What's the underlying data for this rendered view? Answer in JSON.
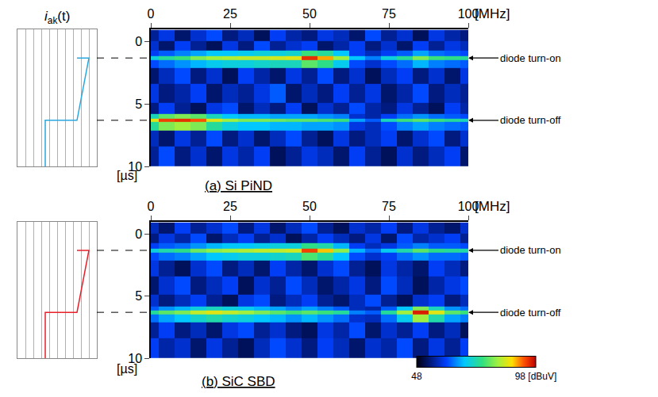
{
  "chart_data": [
    {
      "type": "heatmap",
      "title": "(a) Si PiND",
      "x_label": "[MHz]",
      "y_label": "[µs]",
      "xlim": [
        0,
        100
      ],
      "xticks": [
        0,
        25,
        50,
        75,
        100
      ],
      "ylim": [
        -1,
        10
      ],
      "yticks": [
        0,
        5,
        10
      ],
      "x": [
        0,
        5,
        10,
        15,
        20,
        25,
        30,
        35,
        40,
        45,
        50,
        55,
        60,
        65,
        70,
        75,
        80,
        85,
        90,
        95,
        100
      ],
      "y": [
        -0.5,
        0.4,
        1.0,
        1.3,
        1.6,
        2.6,
        4.2,
        5.6,
        6.0,
        6.3,
        6.6,
        7.6,
        9.2
      ],
      "cells": [
        [
          55,
          59,
          53,
          58,
          61,
          54,
          57,
          52,
          60,
          56,
          54,
          59,
          57,
          53,
          61,
          55,
          58,
          52,
          59,
          56,
          54
        ],
        [
          58,
          53,
          60,
          55,
          52,
          59,
          54,
          61,
          55,
          58,
          60,
          53,
          56,
          60,
          54,
          58,
          53,
          60,
          55,
          59,
          57
        ],
        [
          60,
          62,
          64,
          66,
          68,
          68,
          69,
          70,
          70,
          71,
          76,
          74,
          68,
          60,
          57,
          60,
          62,
          66,
          63,
          62,
          61
        ],
        [
          70,
          74,
          76,
          80,
          82,
          83,
          84,
          84,
          85,
          86,
          95,
          90,
          82,
          68,
          64,
          70,
          74,
          80,
          76,
          75,
          74
        ],
        [
          61,
          63,
          65,
          67,
          69,
          70,
          70,
          71,
          72,
          72,
          78,
          75,
          69,
          61,
          58,
          61,
          63,
          67,
          64,
          63,
          62
        ],
        [
          53,
          57,
          61,
          54,
          58,
          52,
          60,
          56,
          53,
          59,
          55,
          61,
          54,
          58,
          52,
          57,
          60,
          54,
          58,
          53,
          59
        ],
        [
          59,
          54,
          56,
          60,
          53,
          57,
          55,
          59,
          62,
          53,
          57,
          54,
          60,
          55,
          59,
          53,
          56,
          61,
          54,
          57,
          55
        ],
        [
          54,
          60,
          55,
          52,
          59,
          61,
          53,
          57,
          54,
          60,
          52,
          58,
          55,
          61,
          56,
          54,
          59,
          55,
          52,
          60,
          56
        ],
        [
          72,
          78,
          80,
          78,
          72,
          68,
          67,
          67,
          66,
          66,
          66,
          65,
          64,
          58,
          56,
          60,
          63,
          65,
          63,
          62,
          61
        ],
        [
          86,
          94,
          95,
          93,
          86,
          82,
          80,
          80,
          79,
          78,
          78,
          77,
          76,
          66,
          62,
          72,
          76,
          78,
          76,
          74,
          72
        ],
        [
          74,
          80,
          82,
          80,
          74,
          70,
          68,
          68,
          67,
          67,
          66,
          66,
          65,
          59,
          57,
          61,
          64,
          66,
          64,
          63,
          62
        ],
        [
          57,
          53,
          59,
          55,
          61,
          54,
          58,
          53,
          57,
          61,
          55,
          52,
          59,
          54,
          57,
          60,
          53,
          58,
          61,
          54,
          58
        ],
        [
          55,
          61,
          54,
          58,
          53,
          59,
          56,
          60,
          52,
          55,
          59,
          57,
          53,
          60,
          55,
          52,
          58,
          54,
          57,
          60,
          53
        ]
      ],
      "annotations": [
        {
          "text": "diode turn-on",
          "y": 1.3
        },
        {
          "text": "diode turn-off",
          "y": 6.3
        }
      ],
      "inset": {
        "type": "line",
        "title": {
          "symbol": "i",
          "subscript": "ak",
          "argument": "(t)"
        },
        "color": "#29a8e0",
        "x": [
          7.5,
          9,
          7.5,
          3.5,
          3.5
        ],
        "y": [
          1.3,
          1.3,
          6.3,
          6.3,
          10
        ],
        "xlim": [
          0,
          10
        ],
        "xticks": [
          0,
          1,
          2,
          3,
          4,
          5,
          6,
          7,
          8,
          9,
          10
        ],
        "ylim": [
          -1,
          10
        ],
        "tick_labels": false,
        "grid": true
      }
    },
    {
      "type": "heatmap",
      "title": "(b) SiC SBD",
      "x_label": "[MHz]",
      "y_label": "[µs]",
      "xlim": [
        0,
        100
      ],
      "xticks": [
        0,
        25,
        50,
        75,
        100
      ],
      "ylim": [
        -1,
        10
      ],
      "yticks": [
        0,
        5,
        10
      ],
      "x": [
        0,
        5,
        10,
        15,
        20,
        25,
        30,
        35,
        40,
        45,
        50,
        55,
        60,
        65,
        70,
        75,
        80,
        85,
        90,
        95,
        100
      ],
      "y": [
        -0.5,
        0.4,
        1.0,
        1.3,
        1.6,
        2.6,
        4.2,
        5.6,
        6.0,
        6.3,
        6.6,
        7.6,
        9.2
      ],
      "cells": [
        [
          57,
          53,
          60,
          55,
          58,
          61,
          54,
          59,
          53,
          57,
          61,
          55,
          52,
          58,
          56,
          60,
          54,
          59,
          55,
          53,
          58
        ],
        [
          54,
          59,
          56,
          61,
          53,
          57,
          60,
          55,
          58,
          52,
          56,
          60,
          57,
          54,
          59,
          53,
          61,
          56,
          58,
          60,
          55
        ],
        [
          60,
          62,
          63,
          65,
          67,
          68,
          68,
          69,
          70,
          70,
          75,
          73,
          67,
          60,
          57,
          59,
          62,
          64,
          62,
          62,
          61
        ],
        [
          70,
          73,
          75,
          79,
          81,
          82,
          83,
          84,
          84,
          85,
          94,
          89,
          81,
          67,
          63,
          69,
          73,
          78,
          75,
          74,
          73
        ],
        [
          61,
          63,
          64,
          66,
          68,
          69,
          70,
          70,
          71,
          72,
          77,
          74,
          68,
          61,
          58,
          60,
          63,
          65,
          63,
          63,
          62
        ],
        [
          59,
          55,
          52,
          58,
          61,
          54,
          57,
          53,
          60,
          56,
          53,
          58,
          61,
          55,
          52,
          59,
          56,
          53,
          60,
          57,
          54
        ],
        [
          53,
          58,
          61,
          54,
          57,
          60,
          52,
          58,
          55,
          61,
          57,
          53,
          56,
          59,
          54,
          61,
          57,
          52,
          56,
          59,
          61
        ],
        [
          58,
          54,
          57,
          60,
          55,
          52,
          59,
          61,
          54,
          57,
          60,
          55,
          53,
          57,
          61,
          55,
          52,
          58,
          60,
          54,
          57
        ],
        [
          62,
          65,
          67,
          70,
          72,
          70,
          69,
          67,
          66,
          64,
          66,
          64,
          62,
          57,
          56,
          62,
          68,
          80,
          72,
          65,
          63
        ],
        [
          74,
          78,
          80,
          84,
          86,
          84,
          82,
          80,
          78,
          76,
          78,
          76,
          74,
          64,
          62,
          74,
          82,
          96,
          86,
          78,
          76
        ],
        [
          63,
          66,
          68,
          71,
          73,
          71,
          70,
          68,
          67,
          65,
          67,
          65,
          63,
          58,
          57,
          63,
          69,
          82,
          73,
          66,
          64
        ],
        [
          55,
          60,
          54,
          57,
          53,
          59,
          61,
          55,
          58,
          54,
          52,
          59,
          56,
          61,
          53,
          58,
          55,
          60,
          54,
          57,
          52
        ],
        [
          60,
          56,
          58,
          53,
          59,
          55,
          52,
          57,
          61,
          58,
          54,
          60,
          57,
          53,
          58,
          56,
          61,
          54,
          59,
          55,
          60
        ]
      ],
      "annotations": [
        {
          "text": "diode turn-on",
          "y": 1.3
        },
        {
          "text": "diode turn-off",
          "y": 6.3
        }
      ],
      "inset": {
        "type": "line",
        "color": "#e8202a",
        "x": [
          7.5,
          9,
          7.5,
          3.5,
          3.5
        ],
        "y": [
          1.3,
          1.3,
          6.3,
          6.3,
          10
        ],
        "xlim": [
          0,
          10
        ],
        "xticks": [
          0,
          1,
          2,
          3,
          4,
          5,
          6,
          7,
          8,
          9,
          10
        ],
        "ylim": [
          -1,
          10
        ],
        "tick_labels": false,
        "grid": true
      }
    }
  ],
  "color_bar": {
    "range": [
      48,
      98
    ],
    "ticks": [
      48,
      {
        "value": 98,
        "label": "98 [dBuV]"
      }
    ]
  }
}
